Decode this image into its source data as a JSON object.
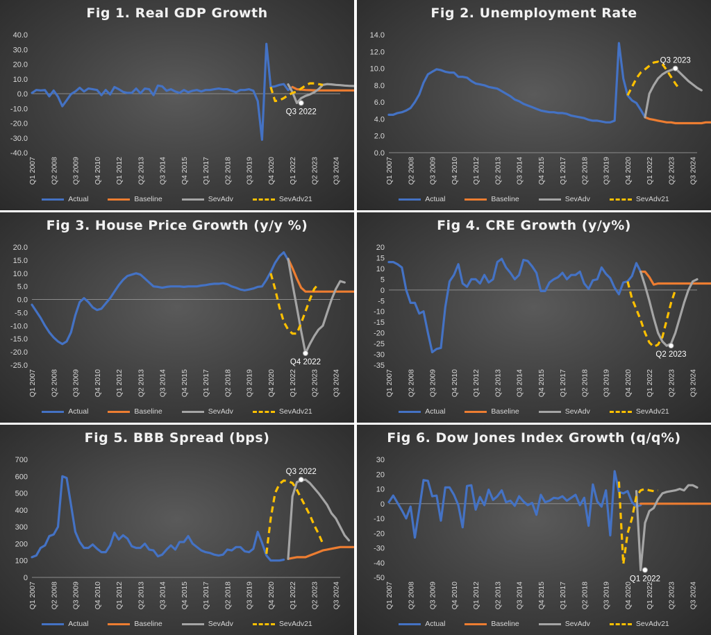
{
  "colors": {
    "Actual": "#4472c4",
    "Baseline": "#ed7d31",
    "SevAdv": "#a5a5a5",
    "SevAdv21": "#ffc000"
  },
  "chart_data": [
    {
      "type": "line",
      "title": "Fig 1. Real GDP Growth",
      "x_tick_labels": [
        "Q1 2007",
        "Q2 2008",
        "Q3 2009",
        "Q4 2010",
        "Q1 2012",
        "Q2 2013",
        "Q3 2014",
        "Q4 2015",
        "Q1 2017",
        "Q2 2018",
        "Q3 2019",
        "Q4 2020",
        "Q1 2022",
        "Q2 2023",
        "Q3 2024"
      ],
      "y_ticks": [
        "40.0",
        "30.0",
        "20.0",
        "10.0",
        "0.0",
        "-10.0",
        "-20.0",
        "-30.0",
        "-40.0"
      ],
      "ylim": [
        -40,
        40
      ],
      "annotation": {
        "text": "Q3 2022",
        "x": 62,
        "y": -6.3
      },
      "series": [
        {
          "name": "Actual",
          "x_start": 0,
          "values": [
            0.5,
            2.5,
            2.2,
            2.4,
            -1.8,
            2.1,
            -2.0,
            -8.5,
            -4.5,
            -0.3,
            1.5,
            4.0,
            1.5,
            3.5,
            3.0,
            2.5,
            -1.0,
            2.5,
            -0.5,
            4.5,
            3.0,
            1.2,
            0.5,
            0.5,
            3.5,
            0.3,
            3.5,
            3.0,
            -1.0,
            5.5,
            5.0,
            2.0,
            3.0,
            1.5,
            0.5,
            2.5,
            1.0,
            2.0,
            2.5,
            1.5,
            2.5,
            2.5,
            3.0,
            3.5,
            3.0,
            3.0,
            2.0,
            1.0,
            2.5,
            2.5,
            3.0,
            2.0,
            -5.0,
            -31.2,
            33.8,
            4.5,
            5.0,
            6.0,
            6.5,
            2.5,
            4.5
          ]
        },
        {
          "name": "Baseline",
          "x_start": 60,
          "values": [
            4.5,
            3.0,
            2.8,
            2.5,
            2.4,
            2.3,
            2.2,
            2.2,
            2.2,
            2.2,
            2.2,
            2.2,
            2.2,
            2.2,
            2.2,
            2.2,
            2.2
          ]
        },
        {
          "name": "SevAdv",
          "x_start": 59,
          "values": [
            6.3,
            1.0,
            -6.3,
            -3.0,
            -1.5,
            -0.5,
            1.0,
            3.0,
            6.0,
            6.5,
            6.3,
            6.0,
            5.8,
            5.5,
            5.3,
            5.2,
            5.0
          ]
        },
        {
          "name": "SevAdv21",
          "x_start": 55,
          "values": [
            4.5,
            -5.0,
            -4.5,
            -3.0,
            -1.0,
            0.5,
            1.5,
            3.5,
            5.5,
            7.0,
            7.0,
            6.5,
            6.0
          ]
        }
      ]
    },
    {
      "type": "line",
      "title": "Fig 2. Unemployment Rate",
      "x_tick_labels": [
        "Q1 2007",
        "Q2 2008",
        "Q3 2009",
        "Q4 2010",
        "Q1 2012",
        "Q2 2013",
        "Q3 2014",
        "Q4 2015",
        "Q1 2017",
        "Q2 2018",
        "Q3 2019",
        "Q4 2020",
        "Q1 2022",
        "Q2 2023",
        "Q3 2024"
      ],
      "y_ticks": [
        "14.0",
        "12.0",
        "10.0",
        "8.0",
        "6.0",
        "4.0",
        "2.0",
        "0.0"
      ],
      "ylim": [
        0,
        14
      ],
      "annotation": {
        "text": "Q3 2023",
        "x": 66,
        "y": 10.0
      },
      "series": [
        {
          "name": "Actual",
          "x_start": 0,
          "values": [
            4.5,
            4.5,
            4.7,
            4.8,
            5.0,
            5.3,
            6.0,
            6.9,
            8.3,
            9.3,
            9.6,
            9.9,
            9.8,
            9.6,
            9.5,
            9.5,
            9.0,
            9.0,
            8.9,
            8.5,
            8.2,
            8.1,
            8.0,
            7.8,
            7.7,
            7.6,
            7.3,
            7.0,
            6.7,
            6.3,
            6.1,
            5.8,
            5.6,
            5.4,
            5.2,
            5.0,
            4.9,
            4.8,
            4.8,
            4.7,
            4.7,
            4.6,
            4.4,
            4.3,
            4.2,
            4.1,
            3.9,
            3.8,
            3.8,
            3.7,
            3.6,
            3.6,
            3.8,
            13.0,
            8.8,
            6.8,
            6.2,
            5.9,
            5.1,
            4.2
          ]
        },
        {
          "name": "Baseline",
          "x_start": 59,
          "values": [
            4.2,
            4.0,
            3.9,
            3.8,
            3.7,
            3.6,
            3.6,
            3.5,
            3.5,
            3.5,
            3.5,
            3.5,
            3.5,
            3.5,
            3.6,
            3.6,
            3.6
          ]
        },
        {
          "name": "SevAdv",
          "x_start": 59,
          "values": [
            4.2,
            7.0,
            8.0,
            8.8,
            9.3,
            9.6,
            9.8,
            10.0,
            9.5,
            9.0,
            8.5,
            8.1,
            7.7,
            7.4
          ]
        },
        {
          "name": "SevAdv21",
          "x_start": 55,
          "values": [
            6.8,
            7.8,
            8.8,
            9.5,
            9.9,
            10.3,
            10.7,
            10.8,
            10.5,
            9.8,
            9.0,
            8.2,
            7.5
          ]
        }
      ]
    },
    {
      "type": "line",
      "title": "Fig 3. House Price Growth (y/y %)",
      "x_tick_labels": [
        "Q1 2007",
        "Q2 2008",
        "Q3 2009",
        "Q4 2010",
        "Q1 2012",
        "Q2 2013",
        "Q3 2014",
        "Q4 2015",
        "Q1 2017",
        "Q2 2018",
        "Q3 2019",
        "Q4 2020",
        "Q1 2022",
        "Q2 2023",
        "Q3 2024"
      ],
      "y_ticks": [
        "20.0",
        "15.0",
        "10.0",
        "5.0",
        "0.0",
        "-5.0",
        "-10.0",
        "-15.0",
        "-20.0",
        "-25.0"
      ],
      "ylim": [
        -25,
        20
      ],
      "annotation": {
        "text": "Q4 2022",
        "x": 63,
        "y": -20.5
      },
      "series": [
        {
          "name": "Actual",
          "x_start": 0,
          "values": [
            -2.0,
            -4.5,
            -7.0,
            -10.0,
            -12.5,
            -14.5,
            -16.0,
            -17.0,
            -16.0,
            -12.5,
            -6.0,
            -1.0,
            0.5,
            -1.0,
            -3.0,
            -4.0,
            -3.5,
            -1.5,
            0.5,
            3.0,
            5.5,
            7.5,
            9.0,
            9.5,
            10.0,
            9.5,
            8.0,
            6.5,
            5.0,
            4.8,
            4.5,
            4.8,
            5.0,
            5.0,
            5.0,
            4.8,
            5.0,
            5.0,
            5.0,
            5.3,
            5.5,
            5.8,
            6.0,
            6.0,
            6.2,
            5.8,
            5.0,
            4.5,
            3.8,
            3.5,
            3.8,
            4.2,
            4.8,
            5.0,
            7.5,
            10.5,
            14.0,
            16.5,
            18.0,
            15.0
          ]
        },
        {
          "name": "Baseline",
          "x_start": 59,
          "values": [
            15.5,
            12.0,
            8.0,
            4.5,
            3.0,
            3.0,
            3.0,
            3.0,
            3.0,
            3.0,
            3.0,
            3.0,
            3.0,
            3.0,
            3.0,
            3.0,
            3.0
          ]
        },
        {
          "name": "SevAdv",
          "x_start": 59,
          "values": [
            15.5,
            6.0,
            -3.0,
            -12.0,
            -20.5,
            -17.0,
            -14.0,
            -11.5,
            -10.0,
            -5.0,
            0.0,
            4.0,
            7.0,
            6.5
          ]
        },
        {
          "name": "SevAdv21",
          "x_start": 55,
          "values": [
            10.0,
            4.0,
            -3.0,
            -8.5,
            -11.5,
            -13.0,
            -13.0,
            -9.0,
            -4.5,
            0.0,
            4.0,
            6.0
          ]
        }
      ]
    },
    {
      "type": "line",
      "title": "Fig 4. CRE Growth (y/y%)",
      "x_tick_labels": [
        "Q1 2007",
        "Q2 2008",
        "Q3 2009",
        "Q4 2010",
        "Q1 2012",
        "Q2 2013",
        "Q3 2014",
        "Q4 2015",
        "Q1 2017",
        "Q2 2018",
        "Q3 2019",
        "Q4 2020",
        "Q1 2022",
        "Q2 2023",
        "Q3 2024"
      ],
      "y_ticks": [
        "20",
        "15",
        "10",
        "5",
        "0",
        "-5",
        "-10",
        "-15",
        "-20",
        "-25",
        "-30",
        "-35"
      ],
      "ylim": [
        -35,
        20
      ],
      "annotation": {
        "text": "Q2 2023",
        "x": 65,
        "y": -26.0
      },
      "series": [
        {
          "name": "Actual",
          "x_start": 0,
          "values": [
            13.0,
            13.0,
            12.0,
            10.5,
            0.0,
            -6.0,
            -6.0,
            -11.0,
            -10.0,
            -20.0,
            -29.0,
            -27.5,
            -27.0,
            -8.0,
            4.0,
            7.0,
            12.0,
            3.0,
            1.5,
            5.0,
            5.0,
            3.0,
            7.0,
            3.5,
            5.0,
            13.0,
            14.5,
            10.5,
            8.0,
            5.0,
            7.0,
            14.0,
            13.5,
            11.0,
            8.0,
            -0.5,
            -0.5,
            3.5,
            5.0,
            6.0,
            8.0,
            5.0,
            7.0,
            7.0,
            8.5,
            3.0,
            0.5,
            4.5,
            5.0,
            10.5,
            7.5,
            5.5,
            1.0,
            -2.0,
            3.5,
            4.0,
            6.5,
            12.5,
            8.5
          ]
        },
        {
          "name": "Baseline",
          "x_start": 58,
          "values": [
            8.5,
            8.5,
            6.0,
            2.5,
            3.0,
            3.0,
            3.0,
            3.0,
            3.0,
            3.0,
            3.0,
            3.0,
            3.0,
            3.0,
            3.0,
            3.0,
            3.0,
            3.0
          ]
        },
        {
          "name": "SevAdv",
          "x_start": 58,
          "values": [
            8.5,
            2.0,
            -5.0,
            -13.0,
            -20.0,
            -24.0,
            -26.0,
            -25.0,
            -20.0,
            -13.0,
            -6.0,
            0.0,
            4.0,
            5.0
          ]
        },
        {
          "name": "SevAdv21",
          "x_start": 55,
          "values": [
            4.0,
            -4.0,
            -9.0,
            -14.0,
            -20.0,
            -24.5,
            -26.5,
            -25.5,
            -22.0,
            -14.0,
            -6.0,
            0.0
          ]
        }
      ]
    },
    {
      "type": "line",
      "title": "Fig 5. BBB Spread (bps)",
      "x_tick_labels": [
        "Q1 2007",
        "Q2 2008",
        "Q3 2009",
        "Q4 2010",
        "Q1 2012",
        "Q2 2013",
        "Q3 2014",
        "Q4 2015",
        "Q1 2017",
        "Q2 2018",
        "Q3 2019",
        "Q4 2020",
        "Q1 2022",
        "Q2 2023",
        "Q3 2024"
      ],
      "y_ticks": [
        "700",
        "600",
        "500",
        "400",
        "300",
        "200",
        "100",
        "0"
      ],
      "ylim": [
        0,
        700
      ],
      "annotation": {
        "text": "Q3 2022",
        "x": 62,
        "y": 580
      },
      "series": [
        {
          "name": "Actual",
          "x_start": 0,
          "values": [
            120,
            130,
            175,
            190,
            245,
            255,
            300,
            600,
            590,
            430,
            270,
            210,
            175,
            175,
            195,
            170,
            150,
            150,
            190,
            265,
            225,
            250,
            230,
            185,
            175,
            175,
            200,
            165,
            160,
            125,
            135,
            165,
            190,
            165,
            210,
            210,
            245,
            200,
            180,
            160,
            150,
            145,
            135,
            130,
            135,
            165,
            160,
            180,
            180,
            155,
            150,
            170,
            270,
            205,
            130,
            100,
            100,
            100,
            105
          ]
        },
        {
          "name": "Baseline",
          "x_start": 59,
          "values": [
            110,
            115,
            120,
            120,
            120,
            130,
            140,
            150,
            160,
            165,
            170,
            175,
            180,
            180,
            180,
            180
          ]
        },
        {
          "name": "SevAdv",
          "x_start": 59,
          "values": [
            110,
            480,
            565,
            575,
            580,
            560,
            530,
            500,
            465,
            430,
            380,
            350,
            300,
            250,
            220
          ]
        },
        {
          "name": "SevAdv21",
          "x_start": 54,
          "values": [
            140,
            350,
            500,
            555,
            575,
            570,
            560,
            520,
            470,
            420,
            370,
            310,
            260,
            200
          ]
        }
      ]
    },
    {
      "type": "line",
      "title": "Fig 6. Dow Jones Index Growth (q/q%)",
      "x_tick_labels": [
        "Q1 2007",
        "Q2 2008",
        "Q3 2009",
        "Q4 2010",
        "Q1 2012",
        "Q2 2013",
        "Q3 2014",
        "Q4 2015",
        "Q1 2017",
        "Q2 2018",
        "Q3 2019",
        "Q4 2020",
        "Q1 2022",
        "Q2 2023",
        "Q3 2024"
      ],
      "y_ticks": [
        "30",
        "20",
        "10",
        "0",
        "-10",
        "-20",
        "-30",
        "-40",
        "-50"
      ],
      "ylim": [
        -50,
        30
      ],
      "annotation": {
        "text": "Q1 2022",
        "x": 59,
        "y": -45
      },
      "series": [
        {
          "name": "Actual",
          "x_start": 0,
          "values": [
            1.0,
            5.5,
            0.5,
            -4.5,
            -10.0,
            -2.0,
            -23.0,
            -4.0,
            16.0,
            15.5,
            5.0,
            5.5,
            -11.5,
            11.0,
            11.0,
            6.0,
            -1.0,
            -16.0,
            12.0,
            12.5,
            -4.0,
            4.5,
            -1.0,
            9.5,
            2.5,
            5.0,
            9.0,
            1.0,
            2.0,
            -1.5,
            5.0,
            1.5,
            -1.0,
            0.5,
            -7.5,
            6.0,
            1.0,
            2.0,
            4.0,
            3.5,
            5.0,
            2.0,
            4.0,
            6.0,
            -1.0,
            4.0,
            -15.0,
            13.0,
            1.5,
            -2.0,
            9.0,
            -21.5,
            22.0,
            8.0,
            7.0,
            8.5,
            1.0,
            -2.0,
            -1.0
          ]
        },
        {
          "name": "Baseline",
          "x_start": 58,
          "values": [
            0,
            0,
            0,
            0,
            0,
            0,
            0,
            0,
            0,
            0,
            0,
            0,
            0,
            0,
            0,
            0,
            0
          ]
        },
        {
          "name": "SevAdv",
          "x_start": 57,
          "values": [
            8.5,
            -45,
            -13,
            -5,
            -3,
            3,
            7,
            8,
            8.5,
            9,
            10,
            9,
            12.5,
            12.5,
            11
          ]
        },
        {
          "name": "SevAdv21",
          "x_start": 53,
          "values": [
            15,
            -41,
            -20,
            -10,
            5,
            9,
            10,
            9,
            8.5,
            9
          ]
        }
      ]
    }
  ]
}
